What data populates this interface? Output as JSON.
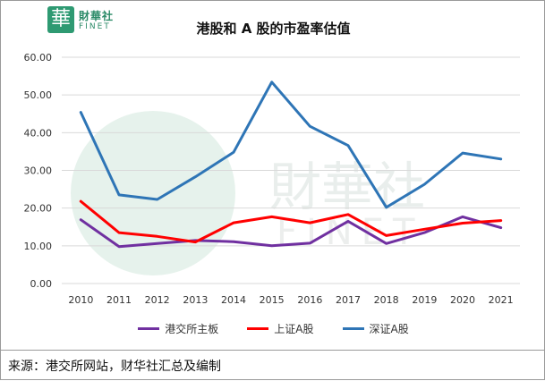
{
  "logo": {
    "seal_char": "華",
    "name_cn": "財華社",
    "name_en": "FINET",
    "watermark_cn": "財華社",
    "watermark_en": "FINET"
  },
  "source_note": "来源：港交所网站，财华社汇总及编制",
  "colors": {
    "border": "#9a9a9a",
    "grid": "#d9d9d9",
    "brand_green": "#2e9a72"
  },
  "chart_data": {
    "type": "line",
    "title": "港股和 A 股的市盈率估值",
    "xlabel": "",
    "ylabel": "",
    "ylim": [
      0,
      60
    ],
    "yticks": [
      "0.00",
      "10.00",
      "20.00",
      "30.00",
      "40.00",
      "50.00",
      "60.00"
    ],
    "x": [
      "2010",
      "2011",
      "2012",
      "2013",
      "2014",
      "2015",
      "2016",
      "2017",
      "2018",
      "2019",
      "2020",
      "2021"
    ],
    "grid": true,
    "legend_position": "bottom",
    "series": [
      {
        "name": "港交所主板",
        "color": "#7030a0",
        "values": [
          16.9,
          9.8,
          10.6,
          11.4,
          11.1,
          10.0,
          10.7,
          16.5,
          10.6,
          13.5,
          17.7,
          14.8
        ]
      },
      {
        "name": "上证A股",
        "color": "#ff0000",
        "values": [
          21.8,
          13.5,
          12.5,
          11.0,
          16.1,
          17.7,
          16.1,
          18.3,
          12.7,
          14.4,
          16.0,
          16.7
        ]
      },
      {
        "name": "深证A股",
        "color": "#2e75b6",
        "values": [
          45.4,
          23.5,
          22.3,
          28.3,
          34.8,
          53.4,
          41.7,
          36.6,
          20.2,
          26.3,
          34.6,
          33.0
        ]
      }
    ]
  }
}
